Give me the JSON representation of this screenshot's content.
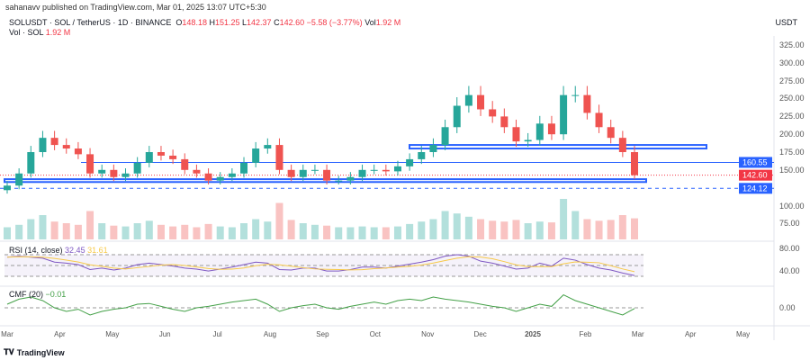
{
  "header": {
    "published": "sahanavv published on TradingView.com, Mar 01, 2025 13:07 UTC+5:30"
  },
  "legend": {
    "symbol": "SOLUSDT · SOL / TetherUS · 1D · BINANCE",
    "o_label": "O",
    "o": "148.18",
    "h_label": "H",
    "h": "151.25",
    "l_label": "L",
    "l": "142.37",
    "c_label": "C",
    "c": "142.60",
    "change": "−5.58 (−3.77%)",
    "vol_label": "Vol",
    "vol": "1.92 M",
    "vol_series": "Vol · SOL",
    "vol_value": "1.92 M"
  },
  "unit": "USDT",
  "brand": "TradingView",
  "chart_data": {
    "type": "candlestick",
    "interval": "weekly approximation of daily chart",
    "x_ticks": [
      "Mar",
      "Apr",
      "May",
      "Jun",
      "Jul",
      "Aug",
      "Sep",
      "Oct",
      "Nov",
      "Dec",
      "2025",
      "Feb",
      "Mar",
      "Apr",
      "May"
    ],
    "y_ticks": [
      "325.00",
      "300.00",
      "275.00",
      "250.00",
      "225.00",
      "200.00",
      "175.00",
      "150.00",
      "100.00",
      "75.00"
    ],
    "closes": [
      128,
      145,
      175,
      195,
      185,
      180,
      172,
      145,
      150,
      140,
      145,
      160,
      175,
      170,
      165,
      150,
      145,
      135,
      140,
      145,
      160,
      180,
      185,
      150,
      140,
      150,
      150,
      135,
      135,
      140,
      150,
      150,
      148,
      155,
      165,
      175,
      185,
      210,
      240,
      255,
      235,
      225,
      210,
      190,
      192,
      215,
      200,
      255,
      255,
      230,
      210,
      195,
      175,
      142.6
    ],
    "volume": [
      1.5,
      1.8,
      2.5,
      3.0,
      2.2,
      2.0,
      1.8,
      3.5,
      2.0,
      1.7,
      1.6,
      2.0,
      2.3,
      1.8,
      1.6,
      1.8,
      1.5,
      1.9,
      1.6,
      1.5,
      2.0,
      2.5,
      2.2,
      4.5,
      2.4,
      2.0,
      1.8,
      1.7,
      1.5,
      1.5,
      1.6,
      1.5,
      1.5,
      1.6,
      1.9,
      2.2,
      2.5,
      3.5,
      3.2,
      2.8,
      2.5,
      2.3,
      2.2,
      2.4,
      2.0,
      2.2,
      2.1,
      5.0,
      3.5,
      2.5,
      2.3,
      2.4,
      3.0,
      2.6
    ],
    "levels": {
      "resistance": "160.55",
      "last": "142.60",
      "support": "124.12"
    },
    "zones": [
      {
        "from": 180,
        "to": 185
      },
      {
        "from": 133,
        "to": 137
      }
    ],
    "colors": {
      "up": "#26a69a",
      "down": "#ef5350",
      "zone": "#2962ff",
      "last": "#f23645"
    },
    "rsi": {
      "title": "RSI (14, close)",
      "value": "32.45",
      "ma": "31.61",
      "ticks": [
        "80.00",
        "40.00"
      ],
      "values": [
        70,
        72,
        70,
        68,
        60,
        58,
        55,
        45,
        48,
        44,
        48,
        55,
        58,
        55,
        52,
        48,
        46,
        42,
        46,
        50,
        55,
        60,
        58,
        45,
        44,
        48,
        48,
        42,
        42,
        45,
        50,
        50,
        48,
        52,
        56,
        60,
        65,
        72,
        75,
        72,
        62,
        58,
        52,
        46,
        48,
        58,
        52,
        68,
        64,
        55,
        48,
        44,
        38,
        33
      ]
    },
    "cmf": {
      "title": "CMF (20)",
      "value": "−0.01",
      "ticks": [
        "0.00"
      ],
      "values": [
        0.05,
        0.12,
        0.15,
        0.1,
        0.0,
        -0.05,
        -0.02,
        -0.1,
        -0.05,
        -0.02,
        0.0,
        0.05,
        0.06,
        0.02,
        -0.02,
        -0.05,
        0.0,
        0.02,
        0.05,
        0.08,
        0.1,
        0.12,
        0.05,
        -0.05,
        0.0,
        0.03,
        0.05,
        0.0,
        -0.02,
        0.02,
        0.05,
        0.08,
        0.05,
        0.1,
        0.12,
        0.1,
        0.15,
        0.12,
        0.1,
        0.08,
        0.05,
        0.02,
        0.0,
        -0.05,
        0.0,
        0.05,
        0.02,
        0.18,
        0.1,
        0.05,
        0.0,
        -0.05,
        -0.1,
        -0.01
      ]
    }
  }
}
